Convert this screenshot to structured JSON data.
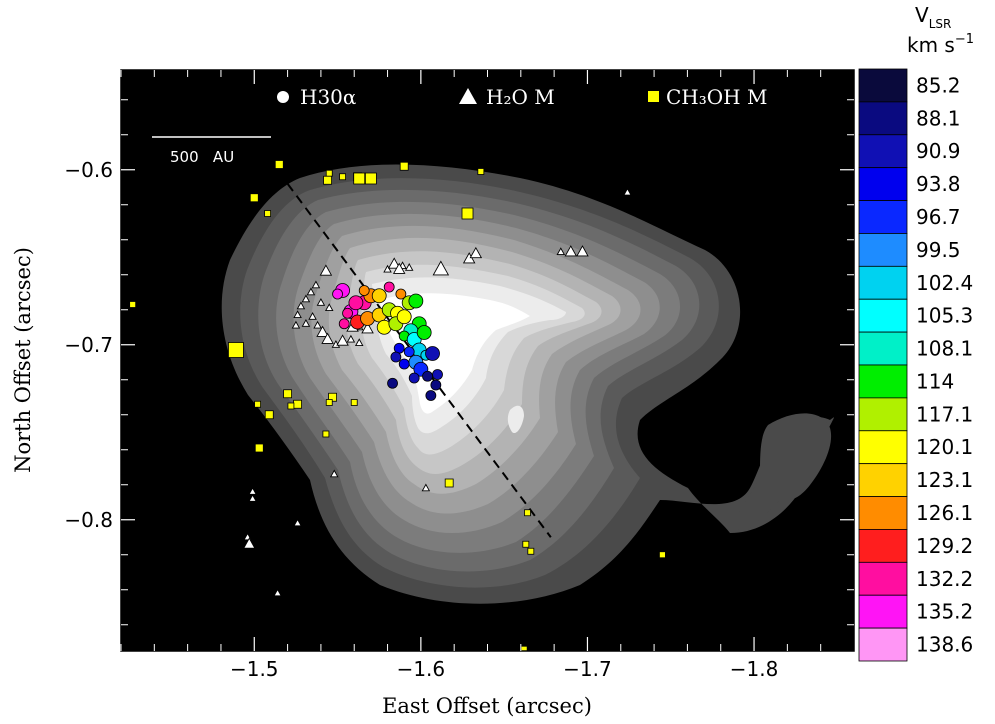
{
  "chart_data": {
    "type": "scatter",
    "xlabel": "East Offset (arcsec)",
    "ylabel": "North Offset (arcsec)",
    "xlim": [
      -1.42,
      -1.86
    ],
    "ylim": [
      -0.875,
      -0.543
    ],
    "xticks": [
      -1.5,
      -1.6,
      -1.7,
      -1.8
    ],
    "xtick_labels": [
      "−1.5",
      "−1.6",
      "−1.7",
      "−1.8"
    ],
    "yticks": [
      -0.6,
      -0.7,
      -0.8
    ],
    "ytick_labels": [
      "−0.6",
      "−0.7",
      "−0.8"
    ],
    "scale_bar_label": "500   AU",
    "legend": [
      {
        "marker": "circle",
        "label": "H30α"
      },
      {
        "marker": "triangle",
        "label": "H₂O M"
      },
      {
        "marker": "square",
        "label": "CH₃OH M"
      }
    ],
    "colorbar": {
      "title_main": "V",
      "title_sub": "LSR",
      "unit_main": "km s",
      "unit_sup": "−1",
      "levels": [
        "85.2",
        "88.1",
        "90.9",
        "93.8",
        "96.7",
        "99.5",
        "102.4",
        "105.3",
        "108.1",
        "114",
        "117.1",
        "120.1",
        "123.1",
        "126.1",
        "129.2",
        "132.2",
        "135.2",
        "138.6"
      ],
      "colors": [
        "#0a0a3c",
        "#0a0a80",
        "#1010b4",
        "#0000ee",
        "#0a28ff",
        "#1e8cff",
        "#00d2f0",
        "#00ffff",
        "#00f0c8",
        "#00ee00",
        "#b0f000",
        "#ffff00",
        "#ffd200",
        "#ff8c00",
        "#ff1e1e",
        "#ff0ea0",
        "#ff14f5",
        "#ff96f5"
      ]
    },
    "series": [
      {
        "name": "H30α",
        "marker": "circle",
        "points": [
          [
            -1.553,
            -0.669,
            16,
            1
          ],
          [
            -1.558,
            -0.681,
            16,
            1
          ],
          [
            -1.562,
            -0.687,
            14,
            1
          ],
          [
            -1.556,
            -0.682,
            15,
            0
          ],
          [
            -1.566,
            -0.676,
            15,
            1
          ],
          [
            -1.561,
            -0.676,
            15,
            1
          ],
          [
            -1.57,
            -0.672,
            13,
            1
          ],
          [
            -1.566,
            -0.669,
            13,
            0
          ],
          [
            -1.575,
            -0.672,
            12,
            1
          ],
          [
            -1.568,
            -0.685,
            13,
            1
          ],
          [
            -1.575,
            -0.683,
            12,
            1
          ],
          [
            -1.581,
            -0.68,
            10,
            1
          ],
          [
            -1.586,
            -0.682,
            11,
            1
          ],
          [
            -1.578,
            -0.69,
            11,
            1
          ],
          [
            -1.585,
            -0.688,
            10,
            1
          ],
          [
            -1.59,
            -0.684,
            11,
            1
          ],
          [
            -1.593,
            -0.676,
            10,
            1
          ],
          [
            -1.597,
            -0.675,
            9,
            1
          ],
          [
            -1.588,
            -0.671,
            13,
            0
          ],
          [
            -1.581,
            -0.667,
            15,
            0
          ],
          [
            -1.599,
            -0.688,
            9,
            1
          ],
          [
            -1.594,
            -0.692,
            8,
            1
          ],
          [
            -1.59,
            -0.695,
            9,
            0
          ],
          [
            -1.596,
            -0.697,
            7,
            1
          ],
          [
            -1.602,
            -0.693,
            9,
            1
          ],
          [
            -1.599,
            -0.703,
            6,
            1
          ],
          [
            -1.603,
            -0.706,
            6,
            0
          ],
          [
            -1.597,
            -0.71,
            5,
            1
          ],
          [
            -1.593,
            -0.704,
            4,
            0
          ],
          [
            -1.587,
            -0.702,
            3,
            0
          ],
          [
            -1.585,
            -0.707,
            2,
            0
          ],
          [
            -1.59,
            -0.711,
            3,
            0
          ],
          [
            -1.6,
            -0.714,
            4,
            1
          ],
          [
            -1.596,
            -0.719,
            2,
            0
          ],
          [
            -1.604,
            -0.718,
            1,
            0
          ],
          [
            -1.609,
            -0.723,
            1,
            0
          ],
          [
            -1.61,
            -0.717,
            2,
            0
          ],
          [
            -1.607,
            -0.705,
            2,
            1
          ],
          [
            -1.606,
            -0.729,
            1,
            0
          ],
          [
            -1.583,
            -0.722,
            1,
            0
          ],
          [
            -1.554,
            -0.688,
            15,
            0
          ],
          [
            -1.55,
            -0.671,
            16,
            0
          ]
        ]
      },
      {
        "name": "H₂O M",
        "marker": "triangle",
        "points": [
          [
            -1.543,
            -0.658,
            1
          ],
          [
            -1.537,
            -0.666,
            0
          ],
          [
            -1.534,
            -0.67,
            0
          ],
          [
            -1.531,
            -0.674,
            0
          ],
          [
            -1.528,
            -0.678,
            0
          ],
          [
            -1.526,
            -0.683,
            0
          ],
          [
            -1.525,
            -0.689,
            0
          ],
          [
            -1.531,
            -0.688,
            0
          ],
          [
            -1.535,
            -0.684,
            0
          ],
          [
            -1.538,
            -0.689,
            0
          ],
          [
            -1.541,
            -0.693,
            1
          ],
          [
            -1.544,
            -0.697,
            1
          ],
          [
            -1.545,
            -0.679,
            0
          ],
          [
            -1.54,
            -0.676,
            0
          ],
          [
            -1.549,
            -0.7,
            0
          ],
          [
            -1.553,
            -0.698,
            1
          ],
          [
            -1.558,
            -0.697,
            0
          ],
          [
            -1.563,
            -0.699,
            0
          ],
          [
            -1.563,
            -0.69,
            0
          ],
          [
            -1.568,
            -0.691,
            1
          ],
          [
            -1.559,
            -0.69,
            1
          ],
          [
            -1.58,
            -0.657,
            0
          ],
          [
            -1.584,
            -0.654,
            1
          ],
          [
            -1.589,
            -0.655,
            0
          ],
          [
            -1.593,
            -0.656,
            0
          ],
          [
            -1.587,
            -0.657,
            1
          ],
          [
            -1.612,
            -0.657,
            2
          ],
          [
            -1.629,
            -0.651,
            1
          ],
          [
            -1.633,
            -0.648,
            1
          ],
          [
            -1.684,
            -0.647,
            0
          ],
          [
            -1.69,
            -0.647,
            1
          ],
          [
            -1.697,
            -0.647,
            1
          ],
          [
            -1.724,
            -0.613,
            0
          ],
          [
            -1.548,
            -0.774,
            0
          ],
          [
            -1.603,
            -0.782,
            0
          ],
          [
            -1.499,
            -0.784,
            0
          ],
          [
            -1.499,
            -0.788,
            0
          ],
          [
            -1.496,
            -0.81,
            0
          ],
          [
            -1.497,
            -0.814,
            1
          ],
          [
            -1.526,
            -0.802,
            0
          ],
          [
            -1.514,
            -0.842,
            0
          ]
        ]
      },
      {
        "name": "CH₃OH M",
        "marker": "square",
        "points": [
          [
            -1.515,
            -0.597,
            1
          ],
          [
            -1.545,
            -0.602,
            0
          ],
          [
            -1.544,
            -0.606,
            1
          ],
          [
            -1.553,
            -0.604,
            0
          ],
          [
            -1.562,
            -0.604,
            1
          ],
          [
            -1.563,
            -0.605,
            2
          ],
          [
            -1.57,
            -0.605,
            2
          ],
          [
            -1.59,
            -0.598,
            1
          ],
          [
            -1.636,
            -0.601,
            0
          ],
          [
            -1.628,
            -0.625,
            2
          ],
          [
            -1.5,
            -0.616,
            1
          ],
          [
            -1.508,
            -0.625,
            0
          ],
          [
            -1.427,
            -0.677,
            0
          ],
          [
            -1.489,
            -0.703,
            3
          ],
          [
            -1.502,
            -0.734,
            0
          ],
          [
            -1.509,
            -0.74,
            1
          ],
          [
            -1.52,
            -0.728,
            1
          ],
          [
            -1.526,
            -0.734,
            1
          ],
          [
            -1.522,
            -0.735,
            0
          ],
          [
            -1.547,
            -0.73,
            1
          ],
          [
            -1.545,
            -0.733,
            0
          ],
          [
            -1.543,
            -0.751,
            0
          ],
          [
            -1.56,
            -0.733,
            0
          ],
          [
            -1.503,
            -0.759,
            1
          ],
          [
            -1.617,
            -0.779,
            1
          ],
          [
            -1.664,
            -0.796,
            0
          ],
          [
            -1.663,
            -0.814,
            0
          ],
          [
            -1.666,
            -0.818,
            0
          ],
          [
            -1.745,
            -0.82,
            0
          ],
          [
            -1.662,
            -0.874,
            0
          ]
        ]
      }
    ],
    "fit_line": {
      "x": [
        -1.52,
        -1.678
      ],
      "y": [
        -0.608,
        -0.81
      ]
    }
  }
}
